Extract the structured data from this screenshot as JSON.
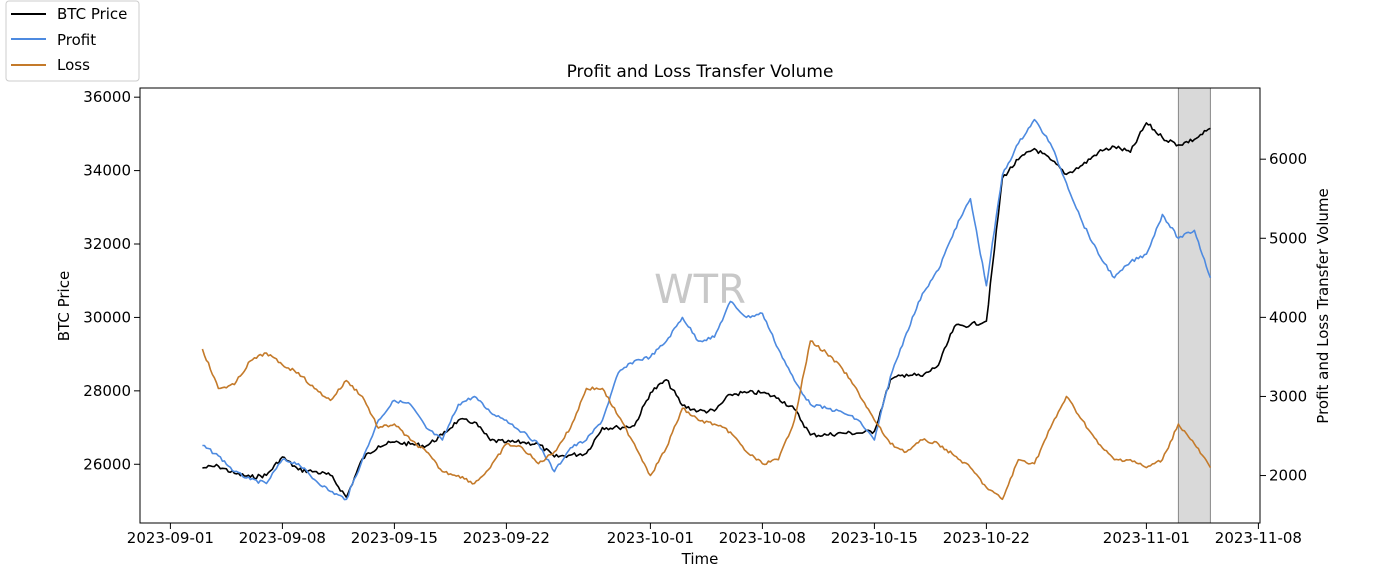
{
  "chart_data": {
    "type": "line",
    "title": "Profit and Loss Transfer Volume",
    "xlabel": "Time",
    "ylabel_left": "BTC Price",
    "ylabel_right": "Profit and Loss Transfer Volume",
    "watermark": "WTR",
    "x_range": [
      "2023-09-01",
      "2023-11-08"
    ],
    "ylim_left": [
      24400,
      36250
    ],
    "ylim_right": [
      1400,
      6900
    ],
    "x_ticks": [
      "2023-09-01",
      "2023-09-08",
      "2023-09-15",
      "2023-09-22",
      "2023-10-01",
      "2023-10-08",
      "2023-10-15",
      "2023-10-22",
      "2023-11-01",
      "2023-11-08"
    ],
    "y_ticks_left": [
      26000,
      28000,
      30000,
      32000,
      34000,
      36000
    ],
    "y_ticks_right": [
      2000,
      3000,
      4000,
      5000,
      6000
    ],
    "highlight_range": [
      "2023-11-03",
      "2023-11-05"
    ],
    "highlight_color": "#d9d9d9",
    "legend_position": "top-left",
    "series": [
      {
        "name": "BTC Price",
        "axis": "left",
        "color": "#000000",
        "points": [
          [
            "2023-09-03",
            25900
          ],
          [
            "2023-09-04",
            25950
          ],
          [
            "2023-09-05",
            25750
          ],
          [
            "2023-09-06",
            25650
          ],
          [
            "2023-09-07",
            25700
          ],
          [
            "2023-09-08",
            26200
          ],
          [
            "2023-09-09",
            25850
          ],
          [
            "2023-09-10",
            25800
          ],
          [
            "2023-09-11",
            25700
          ],
          [
            "2023-09-12",
            25100
          ],
          [
            "2023-09-13",
            26150
          ],
          [
            "2023-09-14",
            26500
          ],
          [
            "2023-09-15",
            26600
          ],
          [
            "2023-09-16",
            26550
          ],
          [
            "2023-09-17",
            26500
          ],
          [
            "2023-09-18",
            26800
          ],
          [
            "2023-09-19",
            27200
          ],
          [
            "2023-09-20",
            27150
          ],
          [
            "2023-09-21",
            26650
          ],
          [
            "2023-09-22",
            26600
          ],
          [
            "2023-09-23",
            26600
          ],
          [
            "2023-09-24",
            26550
          ],
          [
            "2023-09-25",
            26200
          ],
          [
            "2023-09-26",
            26250
          ],
          [
            "2023-09-27",
            26300
          ],
          [
            "2023-09-28",
            27000
          ],
          [
            "2023-09-29",
            27000
          ],
          [
            "2023-09-30",
            27050
          ],
          [
            "2023-10-01",
            27950
          ],
          [
            "2023-10-02",
            28300
          ],
          [
            "2023-10-03",
            27600
          ],
          [
            "2023-10-04",
            27450
          ],
          [
            "2023-10-05",
            27450
          ],
          [
            "2023-10-06",
            27900
          ],
          [
            "2023-10-07",
            27950
          ],
          [
            "2023-10-08",
            27950
          ],
          [
            "2023-10-09",
            27800
          ],
          [
            "2023-10-10",
            27500
          ],
          [
            "2023-10-11",
            26800
          ],
          [
            "2023-10-12",
            26800
          ],
          [
            "2023-10-13",
            26850
          ],
          [
            "2023-10-14",
            26850
          ],
          [
            "2023-10-15",
            26900
          ],
          [
            "2023-10-16",
            28300
          ],
          [
            "2023-10-17",
            28450
          ],
          [
            "2023-10-18",
            28400
          ],
          [
            "2023-10-19",
            28700
          ],
          [
            "2023-10-20",
            29750
          ],
          [
            "2023-10-21",
            29800
          ],
          [
            "2023-10-22",
            29900
          ],
          [
            "2023-10-23",
            33800
          ],
          [
            "2023-10-24",
            34300
          ],
          [
            "2023-10-25",
            34600
          ],
          [
            "2023-10-26",
            34300
          ],
          [
            "2023-10-27",
            33900
          ],
          [
            "2023-10-28",
            34150
          ],
          [
            "2023-10-29",
            34500
          ],
          [
            "2023-10-30",
            34650
          ],
          [
            "2023-10-31",
            34500
          ],
          [
            "2023-11-01",
            35300
          ],
          [
            "2023-11-02",
            34900
          ],
          [
            "2023-11-03",
            34700
          ],
          [
            "2023-11-04",
            34850
          ],
          [
            "2023-11-05",
            35150
          ]
        ]
      },
      {
        "name": "Profit",
        "axis": "right",
        "color": "#4d8ae0",
        "points": [
          [
            "2023-09-03",
            2380
          ],
          [
            "2023-09-04",
            2250
          ],
          [
            "2023-09-05",
            2050
          ],
          [
            "2023-09-06",
            1950
          ],
          [
            "2023-09-07",
            1900
          ],
          [
            "2023-09-08",
            2200
          ],
          [
            "2023-09-09",
            2150
          ],
          [
            "2023-09-10",
            1950
          ],
          [
            "2023-09-11",
            1800
          ],
          [
            "2023-09-12",
            1700
          ],
          [
            "2023-09-13",
            2200
          ],
          [
            "2023-09-14",
            2700
          ],
          [
            "2023-09-15",
            2950
          ],
          [
            "2023-09-16",
            2900
          ],
          [
            "2023-09-17",
            2600
          ],
          [
            "2023-09-18",
            2450
          ],
          [
            "2023-09-19",
            2900
          ],
          [
            "2023-09-20",
            3000
          ],
          [
            "2023-09-21",
            2800
          ],
          [
            "2023-09-22",
            2700
          ],
          [
            "2023-09-23",
            2550
          ],
          [
            "2023-09-24",
            2400
          ],
          [
            "2023-09-25",
            2050
          ],
          [
            "2023-09-26",
            2350
          ],
          [
            "2023-09-27",
            2450
          ],
          [
            "2023-09-28",
            2700
          ],
          [
            "2023-09-29",
            3300
          ],
          [
            "2023-09-30",
            3450
          ],
          [
            "2023-10-01",
            3500
          ],
          [
            "2023-10-02",
            3700
          ],
          [
            "2023-10-03",
            4000
          ],
          [
            "2023-10-04",
            3700
          ],
          [
            "2023-10-05",
            3750
          ],
          [
            "2023-10-06",
            4200
          ],
          [
            "2023-10-07",
            4000
          ],
          [
            "2023-10-08",
            4050
          ],
          [
            "2023-10-09",
            3600
          ],
          [
            "2023-10-10",
            3200
          ],
          [
            "2023-10-11",
            2900
          ],
          [
            "2023-10-12",
            2850
          ],
          [
            "2023-10-13",
            2800
          ],
          [
            "2023-10-14",
            2700
          ],
          [
            "2023-10-15",
            2450
          ],
          [
            "2023-10-16",
            3250
          ],
          [
            "2023-10-17",
            3800
          ],
          [
            "2023-10-18",
            4300
          ],
          [
            "2023-10-19",
            4600
          ],
          [
            "2023-10-20",
            5100
          ],
          [
            "2023-10-21",
            5500
          ],
          [
            "2023-10-22",
            4400
          ],
          [
            "2023-10-23",
            5800
          ],
          [
            "2023-10-24",
            6200
          ],
          [
            "2023-10-25",
            6500
          ],
          [
            "2023-10-26",
            6200
          ],
          [
            "2023-10-27",
            5700
          ],
          [
            "2023-10-28",
            5200
          ],
          [
            "2023-10-29",
            4800
          ],
          [
            "2023-10-30",
            4500
          ],
          [
            "2023-10-31",
            4700
          ],
          [
            "2023-11-01",
            4800
          ],
          [
            "2023-11-02",
            5300
          ],
          [
            "2023-11-03",
            5000
          ],
          [
            "2023-11-04",
            5100
          ],
          [
            "2023-11-05",
            4500
          ]
        ]
      },
      {
        "name": "Loss",
        "axis": "right",
        "color": "#c47a2a",
        "points": [
          [
            "2023-09-03",
            3600
          ],
          [
            "2023-09-04",
            3100
          ],
          [
            "2023-09-05",
            3150
          ],
          [
            "2023-09-06",
            3450
          ],
          [
            "2023-09-07",
            3550
          ],
          [
            "2023-09-08",
            3400
          ],
          [
            "2023-09-09",
            3300
          ],
          [
            "2023-09-10",
            3100
          ],
          [
            "2023-09-11",
            2950
          ],
          [
            "2023-09-12",
            3200
          ],
          [
            "2023-09-13",
            3000
          ],
          [
            "2023-09-14",
            2600
          ],
          [
            "2023-09-15",
            2650
          ],
          [
            "2023-09-16",
            2450
          ],
          [
            "2023-09-17",
            2300
          ],
          [
            "2023-09-18",
            2050
          ],
          [
            "2023-09-19",
            2000
          ],
          [
            "2023-09-20",
            1900
          ],
          [
            "2023-09-21",
            2100
          ],
          [
            "2023-09-22",
            2400
          ],
          [
            "2023-09-23",
            2350
          ],
          [
            "2023-09-24",
            2150
          ],
          [
            "2023-09-25",
            2300
          ],
          [
            "2023-09-26",
            2600
          ],
          [
            "2023-09-27",
            3100
          ],
          [
            "2023-09-28",
            3100
          ],
          [
            "2023-09-29",
            2750
          ],
          [
            "2023-09-30",
            2400
          ],
          [
            "2023-10-01",
            2000
          ],
          [
            "2023-10-02",
            2350
          ],
          [
            "2023-10-03",
            2850
          ],
          [
            "2023-10-04",
            2700
          ],
          [
            "2023-10-05",
            2650
          ],
          [
            "2023-10-06",
            2550
          ],
          [
            "2023-10-07",
            2300
          ],
          [
            "2023-10-08",
            2150
          ],
          [
            "2023-10-09",
            2200
          ],
          [
            "2023-10-10",
            2700
          ],
          [
            "2023-10-11",
            3700
          ],
          [
            "2023-10-12",
            3550
          ],
          [
            "2023-10-13",
            3350
          ],
          [
            "2023-10-14",
            3050
          ],
          [
            "2023-10-15",
            2700
          ],
          [
            "2023-10-16",
            2400
          ],
          [
            "2023-10-17",
            2300
          ],
          [
            "2023-10-18",
            2450
          ],
          [
            "2023-10-19",
            2400
          ],
          [
            "2023-10-20",
            2250
          ],
          [
            "2023-10-21",
            2100
          ],
          [
            "2023-10-22",
            1850
          ],
          [
            "2023-10-23",
            1700
          ],
          [
            "2023-10-24",
            2200
          ],
          [
            "2023-10-25",
            2150
          ],
          [
            "2023-10-26",
            2600
          ],
          [
            "2023-10-27",
            3000
          ],
          [
            "2023-10-28",
            2700
          ],
          [
            "2023-10-29",
            2400
          ],
          [
            "2023-10-30",
            2200
          ],
          [
            "2023-10-31",
            2200
          ],
          [
            "2023-11-01",
            2100
          ],
          [
            "2023-11-02",
            2200
          ],
          [
            "2023-11-03",
            2650
          ],
          [
            "2023-11-04",
            2400
          ],
          [
            "2023-11-05",
            2100
          ]
        ]
      }
    ]
  }
}
